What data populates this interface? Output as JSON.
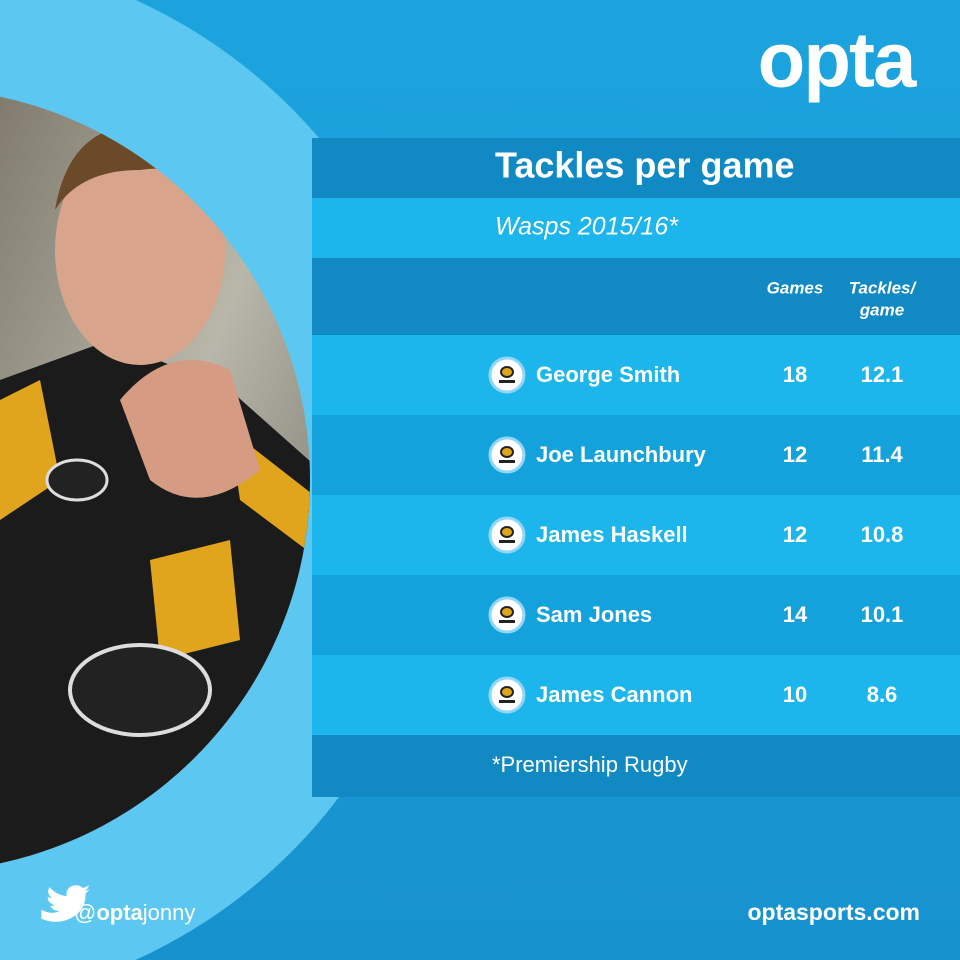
{
  "logo": "opta",
  "title": "Tackles per game",
  "subtitle": "Wasps 2015/16*",
  "table": {
    "columns": [
      "Games",
      [
        "Tackles/",
        "game"
      ]
    ],
    "rows": [
      [
        "George Smith",
        18,
        12.1
      ],
      [
        "Joe Launchbury",
        12,
        11.4
      ],
      [
        "James Haskell",
        12,
        10.8
      ],
      [
        "Sam Jones",
        14,
        10.1
      ],
      [
        "James Cannon",
        10,
        8.6
      ]
    ]
  },
  "footnote": "*Premiership Rugby",
  "footer": {
    "handle": {
      "at": "@",
      "brand": "opta",
      "name": "jonny"
    },
    "website": "optasports.com"
  }
}
